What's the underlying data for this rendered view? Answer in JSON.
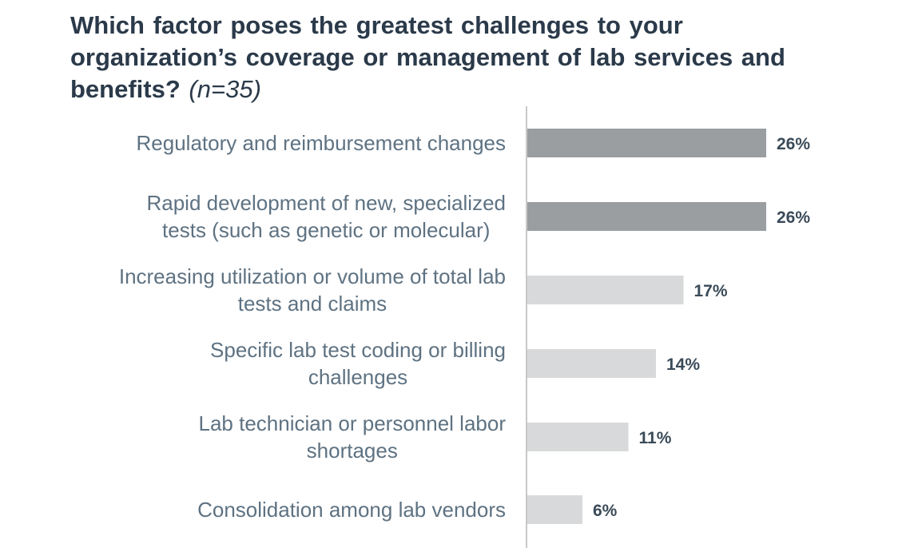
{
  "chart_data": {
    "type": "bar",
    "orientation": "horizontal",
    "title": "Which factor poses the greatest challenges to your organization’s coverage or management of lab services and benefits?",
    "n_label": "(n=35)",
    "categories": [
      [
        "Regulatory and reimbursement changes"
      ],
      [
        "Rapid development of new, specialized",
        "tests (such as genetic or molecular)"
      ],
      [
        "Increasing utilization or volume of total lab",
        "tests and claims"
      ],
      [
        "Specific lab test coding or billing",
        "challenges"
      ],
      [
        "Lab technician or personnel labor",
        "shortages"
      ],
      [
        "Consolidation among lab vendors"
      ]
    ],
    "values": [
      26,
      26,
      17,
      14,
      11,
      6
    ],
    "value_labels": [
      "26%",
      "26%",
      "17%",
      "14%",
      "11%",
      "6%"
    ],
    "unit": "%",
    "grid": false,
    "legend": "none",
    "colors": {
      "highlight": "#9a9ea1",
      "default": "#d7d9da",
      "axis": "#c8c8c8"
    },
    "highlight_indices": [
      0,
      1
    ]
  }
}
